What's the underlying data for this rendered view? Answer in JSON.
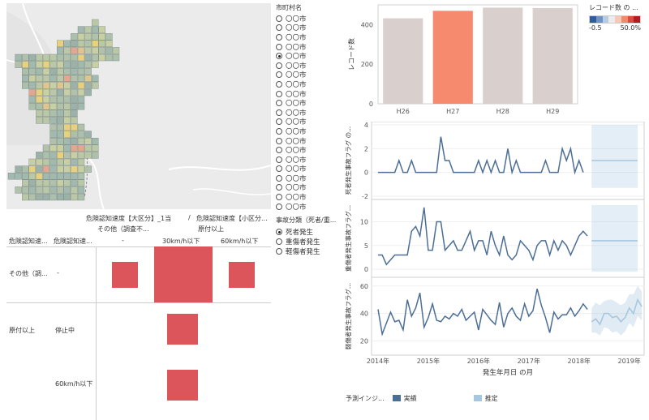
{
  "city_filter": {
    "title": "市町村名",
    "options": [
      "〇〇市",
      "〇〇市",
      "〇〇市",
      "〇〇市",
      "〇〇市",
      "〇〇市",
      "〇〇市",
      "〇〇市",
      "〇〇市",
      "〇〇市",
      "〇〇市",
      "〇〇市",
      "〇〇市",
      "〇〇市",
      "〇〇市",
      "〇〇市",
      "〇〇市",
      "〇〇市",
      "〇〇市",
      "〇〇市",
      "〇〇市"
    ],
    "selected_index": 4
  },
  "severity_filter": {
    "title": "事故分類（死者/重...",
    "options": [
      "死者発生",
      "重傷者発生",
      "軽傷者発生"
    ],
    "selected_index": 0
  },
  "matrix": {
    "header_top_left": "危険認知速度【大区分】_1当",
    "header_slash": "/",
    "header_top_right": "危険認知速度【小区分...",
    "col_groups": [
      "その他（調査不...",
      "原付以上"
    ],
    "cols": [
      "-",
      "30km/h以下",
      "60km/h以下"
    ],
    "row_headers": [
      "危険認知速...",
      "危険認知速..."
    ],
    "rows": [
      {
        "group": "その他（調...",
        "sub": "-"
      },
      {
        "group": "原付以上",
        "sub": "停止中"
      },
      {
        "group": "",
        "sub": "60km/h以下"
      }
    ]
  },
  "bar_chart": {
    "chart_data": {
      "type": "bar",
      "categories": [
        "H26",
        "H27",
        "H28",
        "H29"
      ],
      "values": [
        432,
        470,
        486,
        484
      ],
      "ylabel": "レコード数",
      "ylim": [
        0,
        500
      ],
      "yticks": [
        0,
        200,
        400
      ],
      "highlight_index": 1,
      "colors": [
        "#d9d0ce",
        "#f58a6e",
        "#d9d0ce",
        "#d9d0ce"
      ]
    }
  },
  "bar_legend": {
    "title": "レコード数 の ...",
    "min_label": "-0.5",
    "max_label": "50.0%",
    "ramp": [
      "#2f5d9a",
      "#6f93c3",
      "#b7cbe2",
      "#ececec",
      "#f6c8b5",
      "#ef8a6d",
      "#d94b3f",
      "#b21c20"
    ]
  },
  "line_charts": {
    "chart_data": [
      {
        "type": "line",
        "ylabel": "死者発生事故フラグ の...",
        "ylim": [
          -2,
          4
        ],
        "yticks": [
          -2,
          0,
          2,
          4
        ],
        "actual": [
          0,
          0,
          0,
          0,
          0,
          1,
          0,
          0,
          1,
          0,
          0,
          0,
          0,
          0,
          0,
          3,
          1,
          1,
          0,
          0,
          0,
          0,
          0,
          0,
          1,
          0,
          1,
          0,
          1,
          0,
          0,
          2,
          0,
          1,
          0,
          0,
          0,
          0,
          0,
          0,
          1,
          0,
          0,
          0,
          2,
          1,
          2,
          0,
          1,
          0
        ],
        "forecast": {
          "start": 51,
          "end": 62,
          "value": 1,
          "upper": 4,
          "lower": -1.3
        }
      },
      {
        "type": "line",
        "ylabel": "重傷者発生事故フラグ...",
        "ylim": [
          -1,
          14
        ],
        "yticks": [
          0,
          5,
          10
        ],
        "actual": [
          3,
          3,
          1,
          2,
          3,
          3,
          3,
          3,
          8,
          9,
          7,
          13,
          4,
          4,
          10,
          10,
          4,
          5,
          6,
          4,
          4,
          6,
          8,
          4,
          6,
          6,
          3,
          8,
          5,
          3,
          7,
          3,
          2,
          3,
          6,
          5,
          4,
          2,
          5,
          6,
          6,
          3,
          6,
          4,
          6,
          5,
          3,
          5,
          7,
          8,
          7
        ],
        "forecast": {
          "start": 51,
          "end": 62,
          "value": 6,
          "upper": 13.5,
          "lower": -0.5
        }
      },
      {
        "type": "line",
        "ylabel": "軽傷者発生事故フラグ...",
        "ylim": [
          12,
          64
        ],
        "yticks": [
          20,
          40,
          60
        ],
        "actual": [
          43,
          25,
          33,
          41,
          34,
          35,
          28,
          50,
          38,
          44,
          55,
          30,
          37,
          47,
          35,
          34,
          38,
          36,
          40,
          38,
          43,
          35,
          38,
          41,
          28,
          43,
          39,
          35,
          32,
          48,
          30,
          40,
          44,
          38,
          35,
          47,
          38,
          42,
          58,
          46,
          37,
          26,
          41,
          36,
          39,
          39,
          44,
          38,
          42,
          47,
          43
        ],
        "forecast": {
          "start": 51,
          "end": 62,
          "predicted": [
            34,
            36,
            32,
            40,
            40,
            37,
            38,
            34,
            37,
            44,
            40,
            50,
            45
          ],
          "upper": [
            44,
            48,
            46,
            49,
            50,
            50,
            48,
            46,
            48,
            54,
            54,
            60,
            56
          ],
          "lower": [
            26,
            26,
            24,
            30,
            29,
            26,
            27,
            24,
            27,
            33,
            30,
            38,
            35
          ]
        }
      }
    ],
    "x_ticks": [
      "2014年",
      "2015年",
      "2016年",
      "2017年",
      "2018年",
      "2019年"
    ],
    "xlabel": "発生年月日 の月"
  },
  "forecast_legend": {
    "title": "予測インジ...",
    "actual_label": "実績",
    "estimate_label": "推定",
    "actual_color": "#4c6e95",
    "estimate_color": "#a7c7e0"
  }
}
